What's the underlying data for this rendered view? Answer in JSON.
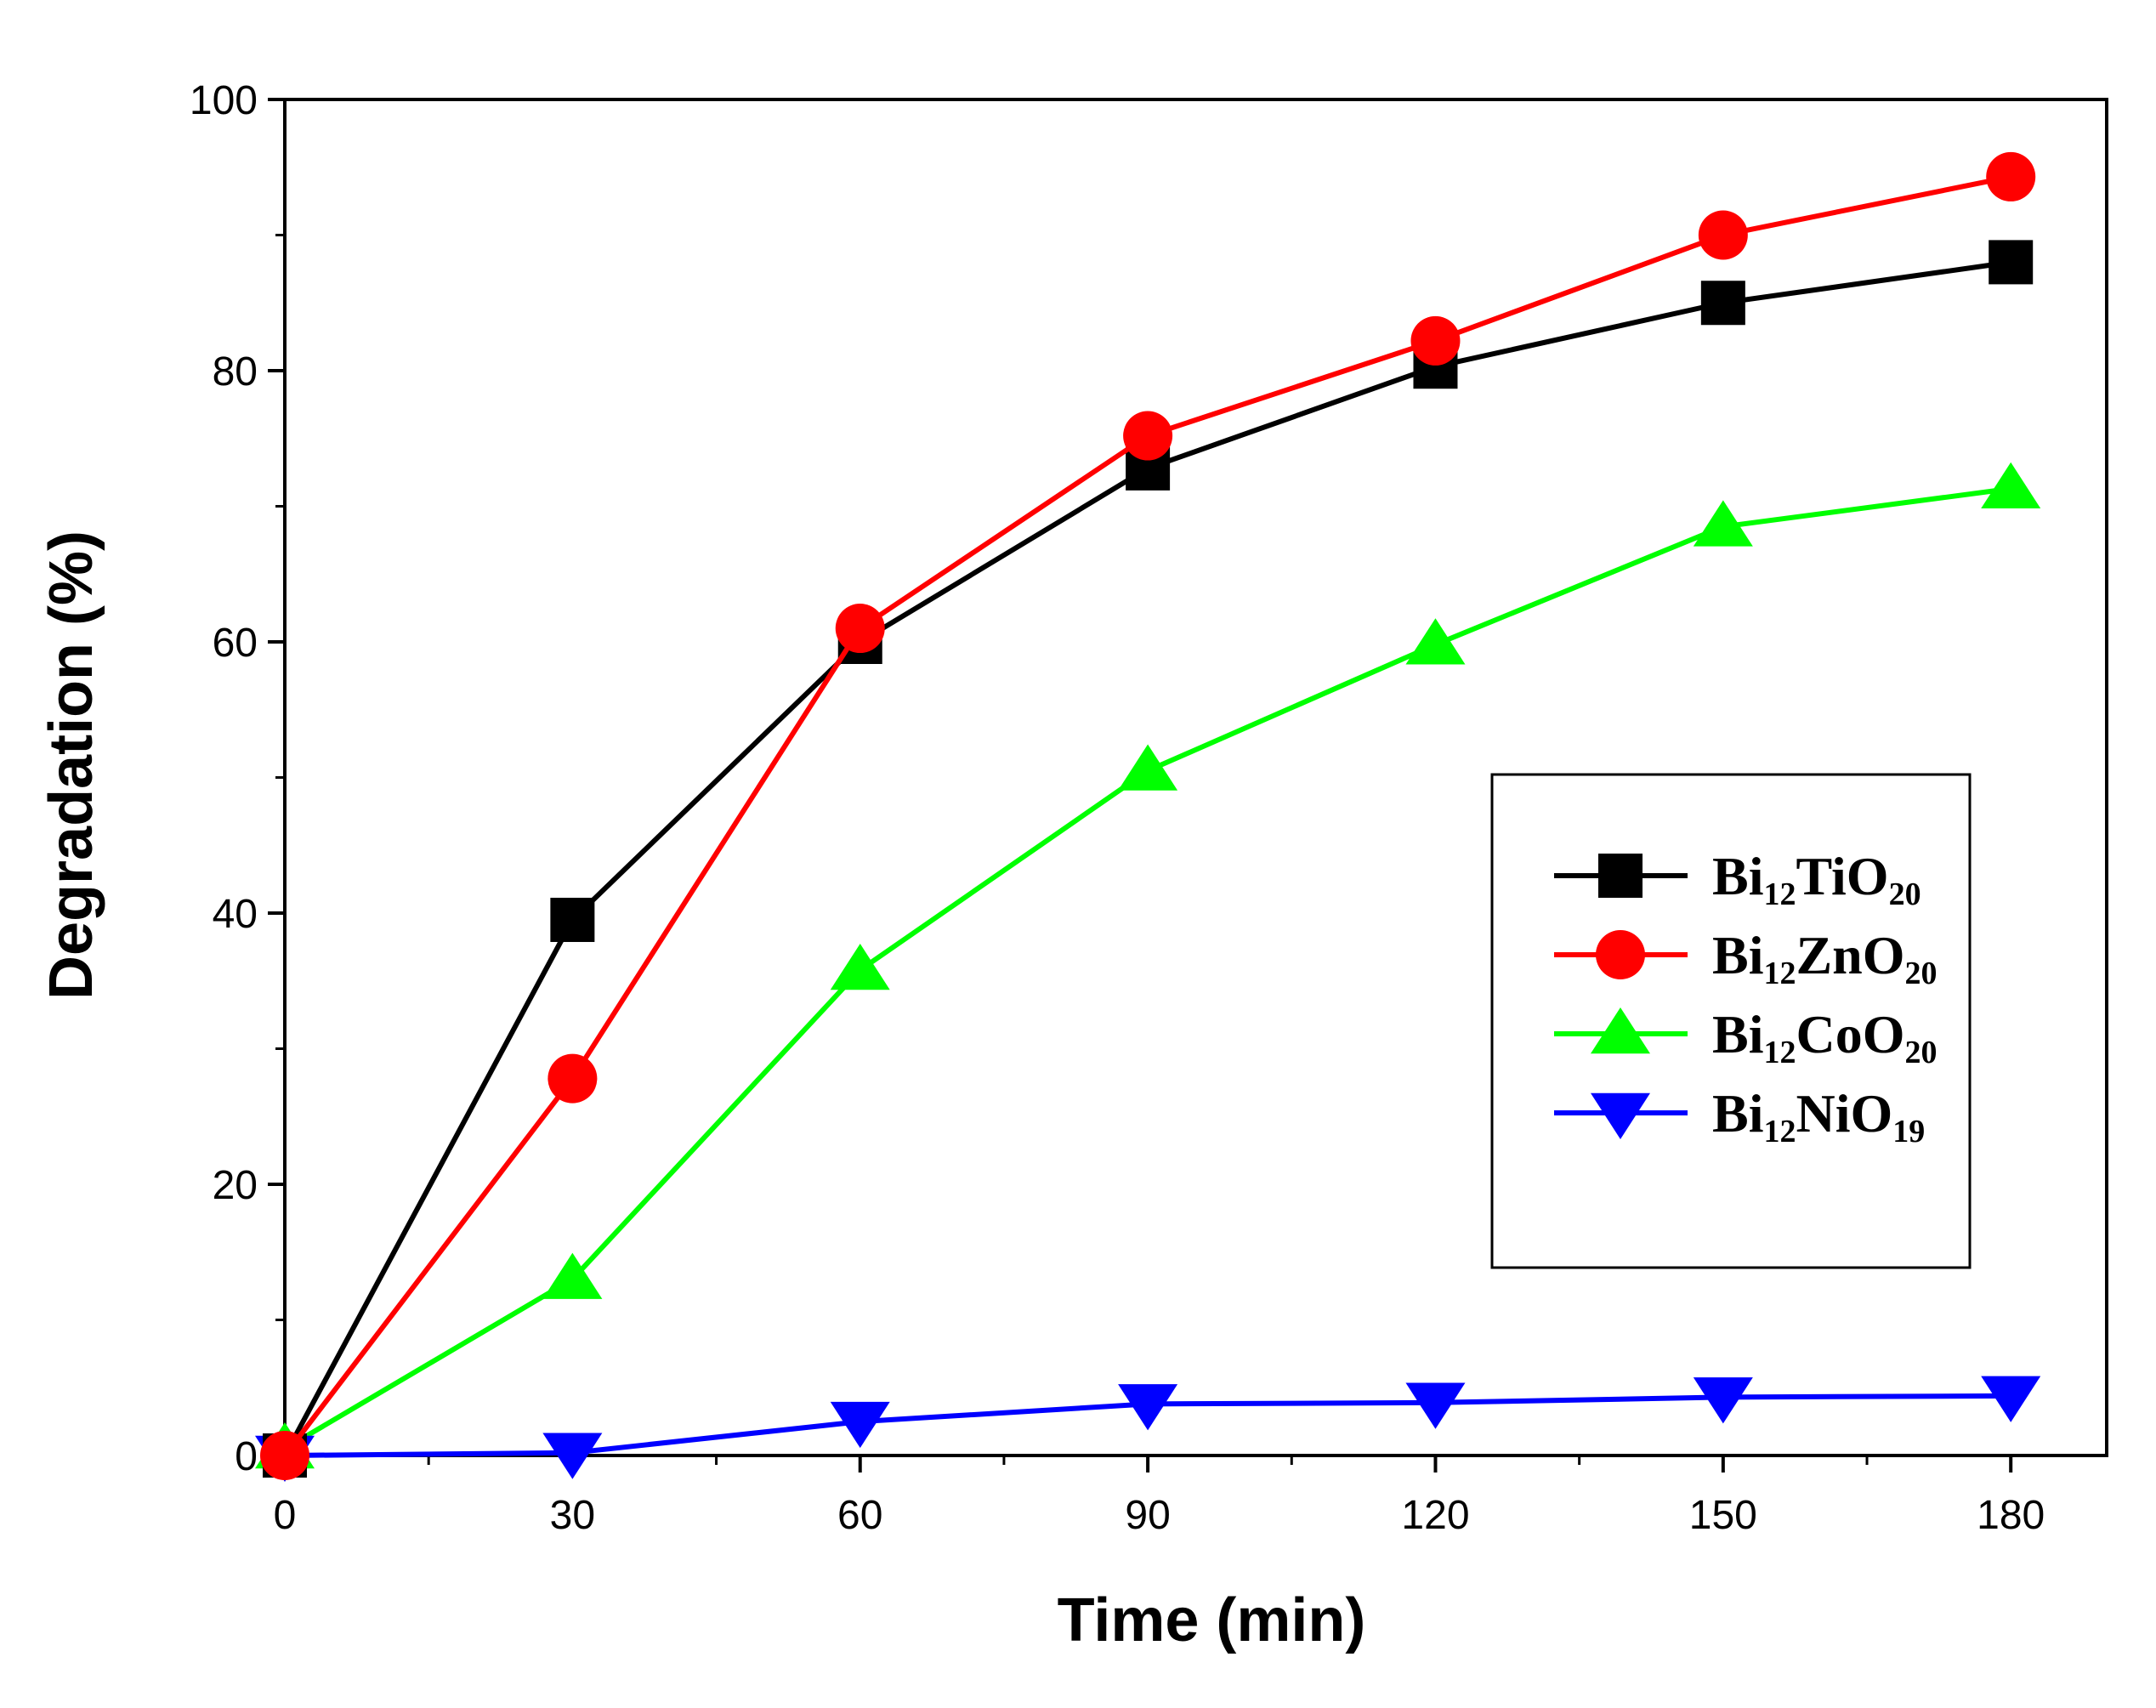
{
  "chart_data": {
    "type": "line",
    "title": "",
    "xlabel": "Time (min)",
    "ylabel": "Degradation (%)",
    "xlim": [
      0,
      190
    ],
    "ylim": [
      0,
      100
    ],
    "x_ticks": [
      0,
      30,
      60,
      90,
      120,
      150,
      180
    ],
    "y_ticks": [
      0,
      20,
      40,
      60,
      80,
      100
    ],
    "x_tick_labels": [
      "0",
      "30",
      "60",
      "90",
      "120",
      "150",
      "180"
    ],
    "y_tick_labels": [
      "0",
      "20",
      "40",
      "60",
      "80",
      "100"
    ],
    "x": [
      0,
      30,
      60,
      90,
      120,
      150,
      180
    ],
    "grid": false,
    "legend_position": "right",
    "series": [
      {
        "name": "Bi12TiO20",
        "label_base": "Bi",
        "label_sub1": "12",
        "label_mid": "TiO",
        "label_sub2": "20",
        "color": "#000000",
        "marker": "square",
        "values": [
          0,
          39.5,
          60,
          72.8,
          80.3,
          85,
          88
        ]
      },
      {
        "name": "Bi12ZnO20",
        "label_base": "Bi",
        "label_sub1": "12",
        "label_mid": "ZnO",
        "label_sub2": "20",
        "color": "#ff0000",
        "marker": "circle",
        "values": [
          0,
          27.8,
          61,
          75.2,
          82.2,
          90,
          94.3
        ]
      },
      {
        "name": "Bi12CoO20",
        "label_base": "Bi",
        "label_sub1": "12",
        "label_mid": "CoO",
        "label_sub2": "20",
        "color": "#00ff00",
        "marker": "triangle-up",
        "values": [
          0.5,
          13,
          35.8,
          50.5,
          59.8,
          68.5,
          71.3
        ]
      },
      {
        "name": "Bi12NiO19",
        "label_base": "Bi",
        "label_sub1": "12",
        "label_mid": "NiO",
        "label_sub2": "19",
        "color": "#0000ff",
        "marker": "triangle-down",
        "values": [
          0,
          0.2,
          2.5,
          3.8,
          3.9,
          4.3,
          4.4
        ]
      }
    ]
  }
}
